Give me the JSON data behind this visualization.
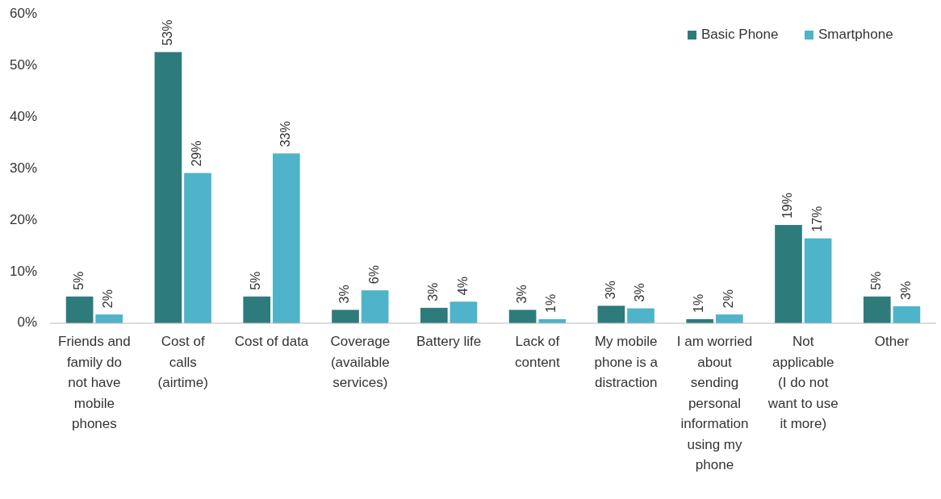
{
  "chart_data": {
    "type": "bar",
    "categories": [
      "Friends and family do not have mobile phones",
      "Cost of calls (airtime)",
      "Cost of data",
      "Coverage (available services)",
      "Battery life",
      "Lack of content",
      "My mobile phone is a distraction",
      "I am worried about sending personal information using my phone",
      "Not applicable (I do not want to use it more)",
      "Other"
    ],
    "series": [
      {
        "name": "Basic Phone",
        "color": "#2e7b7c",
        "values": [
          5.2,
          52.7,
          5.2,
          2.6,
          3.0,
          2.6,
          3.4,
          0.8,
          19.1,
          5.2
        ],
        "value_labels": [
          "5%",
          "53%",
          "5%",
          "3%",
          "3%",
          "3%",
          "3%",
          "1%",
          "19%",
          "5%"
        ]
      },
      {
        "name": "Smartphone",
        "color": "#4fb3c9",
        "values": [
          1.7,
          29.2,
          33.0,
          6.4,
          4.2,
          0.8,
          2.9,
          1.7,
          16.5,
          3.3
        ],
        "value_labels": [
          "2%",
          "29%",
          "33%",
          "6%",
          "4%",
          "1%",
          "3%",
          "2%",
          "17%",
          "3%"
        ]
      }
    ],
    "ylim": [
      0,
      60
    ],
    "yticks": [
      {
        "value": 0,
        "label": "0%"
      },
      {
        "value": 10,
        "label": "10%"
      },
      {
        "value": 20,
        "label": "20%"
      },
      {
        "value": 30,
        "label": "30%"
      },
      {
        "value": 40,
        "label": "40%"
      },
      {
        "value": 50,
        "label": "50%"
      },
      {
        "value": 60,
        "label": "60%"
      }
    ],
    "grid": false,
    "legend": "top right"
  }
}
